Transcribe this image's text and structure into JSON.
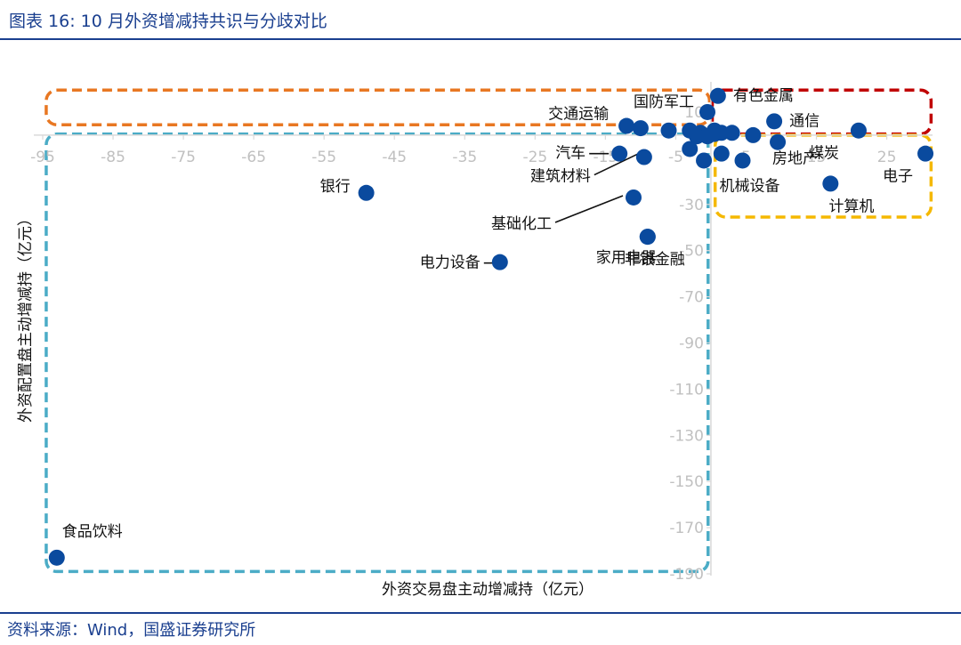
{
  "header": {
    "title": "图表 16:  10 月外资增减持共识与分歧对比"
  },
  "footer": {
    "source": "资料来源：Wind，国盛证券研究所"
  },
  "colors": {
    "accent": "#1a3f8f",
    "marker": "#0a4a9e",
    "box_consensus_buy": "#c00000",
    "box_top": "#e87722",
    "box_bottom_left": "#4bacc6",
    "box_bottom_right": "#f5b800"
  },
  "chart_data": {
    "type": "scatter",
    "xlabel": "外资交易盘主动增减持（亿元）",
    "ylabel": "外资配置盘主动增减持（亿元）",
    "xlim": [
      -95,
      31
    ],
    "ylim": [
      -190,
      20
    ],
    "x_ticks": [
      -95,
      -85,
      -75,
      -65,
      -55,
      -45,
      -35,
      -25,
      -15,
      -5,
      5,
      15,
      25
    ],
    "x_tick_labels": [
      "-95",
      "-85",
      "-75",
      "-65",
      "-55",
      "-45",
      "-35",
      "-25",
      "-15",
      "-5",
      "5",
      "15",
      "25"
    ],
    "y_ticks": [
      10,
      -30,
      -50,
      -70,
      -90,
      -110,
      -130,
      -150,
      -170,
      -190
    ],
    "y_tick_labels": [
      "10",
      "-30",
      "-50",
      "-70",
      "-90",
      "-110",
      "-130",
      "-150",
      "-170",
      "-190"
    ],
    "grid": false,
    "points": [
      {
        "label": "有色金属",
        "x": 1,
        "y": 17
      },
      {
        "label": "国防军工",
        "x": -0.5,
        "y": 10
      },
      {
        "label": "通信",
        "x": 9,
        "y": 6
      },
      {
        "label": "交通运输",
        "x": -12,
        "y": 4
      },
      {
        "label": "煤炭",
        "x": 21,
        "y": 2
      },
      {
        "label": "电子",
        "x": 30.5,
        "y": -8
      },
      {
        "label": "汽车",
        "x": -13,
        "y": -8
      },
      {
        "label": "建筑材料",
        "x": -9.5,
        "y": -9.5
      },
      {
        "label": "房地产",
        "x": 9.5,
        "y": -3
      },
      {
        "label": "机械设备",
        "x": 4.5,
        "y": -11
      },
      {
        "label": "计算机",
        "x": 17,
        "y": -21
      },
      {
        "label": "基础化工",
        "x": -11,
        "y": -27
      },
      {
        "label": "银行",
        "x": -49,
        "y": -25
      },
      {
        "label": "家用电器",
        "x": -9,
        "y": -44
      },
      {
        "label": "非银金融",
        "x": -9,
        "y": -44
      },
      {
        "label": "电力设备",
        "x": -30,
        "y": -55
      },
      {
        "label": "食品饮料",
        "x": -93,
        "y": -183
      },
      {
        "label": "",
        "x": -10,
        "y": 3
      },
      {
        "label": "",
        "x": -6,
        "y": 2
      },
      {
        "label": "",
        "x": -3,
        "y": 2
      },
      {
        "label": "",
        "x": -1.5,
        "y": 1
      },
      {
        "label": "",
        "x": 0.5,
        "y": 2
      },
      {
        "label": "",
        "x": 1.5,
        "y": 1
      },
      {
        "label": "",
        "x": 3,
        "y": 1
      },
      {
        "label": "",
        "x": -2,
        "y": -0.5
      },
      {
        "label": "",
        "x": -0.5,
        "y": -0.5
      },
      {
        "label": "",
        "x": 0.5,
        "y": 0.5
      },
      {
        "label": "",
        "x": -3,
        "y": -6
      },
      {
        "label": "",
        "x": -1,
        "y": -11
      },
      {
        "label": "",
        "x": 1.5,
        "y": -8
      },
      {
        "label": "",
        "x": 6,
        "y": 0
      }
    ]
  }
}
